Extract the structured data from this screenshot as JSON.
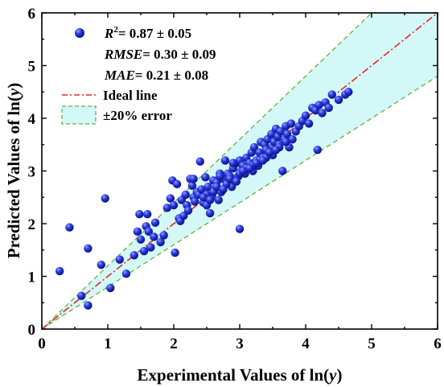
{
  "chart_data": {
    "type": "scatter",
    "xlabel_prefix": "Experimental Values of ln(",
    "xlabel_var": "y",
    "xlabel_suffix": ")",
    "ylabel_prefix": "Predicted Values of ln(",
    "ylabel_var": "y",
    "ylabel_suffix": ")",
    "xlim": [
      0,
      6
    ],
    "ylim": [
      0,
      6
    ],
    "xticks": [
      "0",
      "1",
      "2",
      "3",
      "4",
      "5",
      "6"
    ],
    "yticks": [
      "0",
      "1",
      "2",
      "3",
      "4",
      "5",
      "6"
    ],
    "grid": false,
    "legend_position": "top-left",
    "stats": {
      "r2_label": "R",
      "r2_sup": "2",
      "r2_value": "= 0.87 ± 0.05",
      "rmse_label": "RMSE",
      "rmse_value": "= 0.30 ± 0.09",
      "mae_label": "MAE",
      "mae_value": "= 0.21 ± 0.08"
    },
    "legend": {
      "ideal_line": "Ideal line",
      "error_band": "±20% error"
    },
    "error_band_fraction": 0.2,
    "colors": {
      "points": "#1f2fd8",
      "ideal_line": "#e0282a",
      "band_fill": "#d4f7f8",
      "band_edge": "#62b43c"
    },
    "x": [
      0.27,
      0.42,
      0.6,
      0.7,
      0.7,
      0.9,
      0.96,
      1.04,
      1.18,
      1.28,
      1.4,
      1.45,
      1.48,
      1.5,
      1.55,
      1.58,
      1.6,
      1.62,
      1.65,
      1.7,
      1.72,
      1.8,
      1.85,
      1.9,
      1.95,
      1.98,
      2.0,
      2.02,
      2.05,
      2.08,
      2.1,
      2.12,
      2.15,
      2.18,
      2.2,
      2.22,
      2.25,
      2.28,
      2.3,
      2.32,
      2.35,
      2.38,
      2.4,
      2.42,
      2.45,
      2.48,
      2.5,
      2.52,
      2.55,
      2.58,
      2.6,
      2.62,
      2.65,
      2.68,
      2.7,
      2.72,
      2.75,
      2.78,
      2.8,
      2.82,
      2.85,
      2.88,
      2.9,
      2.92,
      2.95,
      2.98,
      3.0,
      3.0,
      3.02,
      3.05,
      3.08,
      3.1,
      3.12,
      3.15,
      3.18,
      3.2,
      3.22,
      3.25,
      3.28,
      3.3,
      3.32,
      3.35,
      3.38,
      3.4,
      3.42,
      3.45,
      3.48,
      3.5,
      3.52,
      3.55,
      3.58,
      3.6,
      3.62,
      3.65,
      3.68,
      3.7,
      3.72,
      3.75,
      3.78,
      3.8,
      3.85,
      3.9,
      3.95,
      4.0,
      4.05,
      4.1,
      4.15,
      4.18,
      4.2,
      4.25,
      4.3,
      4.35,
      4.4,
      4.5,
      4.6,
      4.65,
      2.3,
      2.5,
      2.7,
      2.9,
      3.1,
      3.3,
      3.5,
      3.7,
      2.6,
      2.8,
      3.0,
      3.2,
      3.4,
      3.6,
      2.45,
      2.65,
      2.85,
      3.05,
      3.25,
      3.45,
      2.55,
      2.75,
      2.95,
      3.15,
      3.35,
      3.55
    ],
    "y": [
      1.1,
      1.93,
      0.63,
      0.45,
      1.53,
      1.22,
      2.48,
      0.78,
      1.32,
      1.05,
      1.4,
      1.85,
      2.18,
      1.7,
      1.48,
      1.95,
      2.18,
      1.85,
      1.55,
      1.75,
      2.02,
      1.65,
      1.78,
      2.3,
      2.48,
      2.82,
      2.35,
      1.45,
      2.75,
      2.1,
      2.05,
      2.45,
      2.15,
      2.55,
      2.35,
      2.25,
      2.85,
      2.72,
      2.5,
      2.42,
      2.6,
      2.55,
      3.18,
      2.65,
      2.4,
      2.88,
      2.35,
      2.7,
      2.2,
      2.5,
      2.82,
      2.65,
      2.78,
      2.45,
      2.95,
      2.6,
      2.85,
      3.2,
      2.75,
      2.95,
      2.9,
      2.7,
      3.05,
      2.82,
      3.15,
      2.9,
      1.9,
      3.2,
      3.0,
      3.1,
      2.95,
      3.25,
      3.05,
      3.15,
      3.35,
      3.0,
      3.45,
      3.2,
      3.1,
      3.35,
      3.55,
      3.25,
      3.5,
      3.4,
      3.6,
      3.35,
      3.7,
      3.45,
      3.55,
      3.8,
      3.65,
      3.5,
      3.75,
      3.0,
      3.6,
      3.85,
      3.7,
      3.45,
      3.9,
      3.6,
      3.75,
      3.85,
      3.95,
      4.05,
      3.9,
      4.2,
      4.15,
      3.4,
      4.25,
      4.1,
      4.3,
      4.2,
      4.45,
      4.35,
      4.45,
      4.5,
      2.85,
      2.55,
      2.9,
      3.15,
      3.05,
      3.2,
      3.3,
      3.55,
      2.6,
      2.75,
      2.95,
      3.1,
      3.25,
      3.45,
      2.5,
      2.7,
      2.85,
      3.0,
      3.15,
      3.35,
      2.45,
      2.65,
      2.8,
      3.05,
      3.2,
      3.4
    ]
  }
}
